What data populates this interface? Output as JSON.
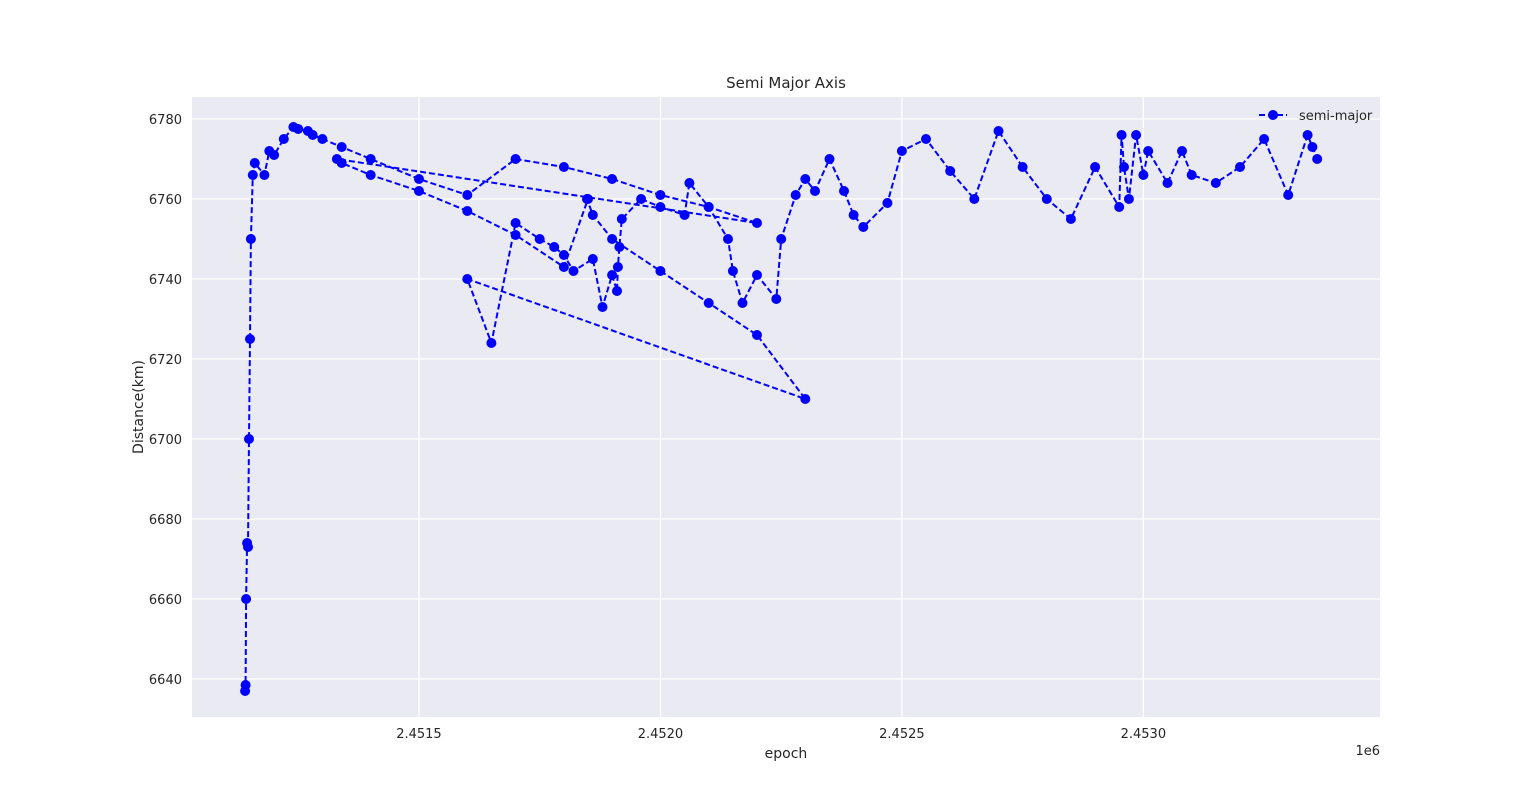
{
  "chart_data": {
    "type": "line",
    "title": "Semi Major Axis",
    "xlabel": "epoch",
    "ylabel": "Distance(km)",
    "x_offset_label": "1e6",
    "xlim": [
      2.45103,
      2.45349
    ],
    "ylim": [
      6630.5,
      6785.5
    ],
    "x_ticks": [
      2.4515,
      2.452,
      2.4525,
      2.453
    ],
    "x_tick_labels": [
      "2.4515",
      "2.4520",
      "2.4525",
      "2.4530"
    ],
    "y_ticks": [
      6640,
      6660,
      6680,
      6700,
      6720,
      6740,
      6760,
      6780
    ],
    "y_tick_labels": [
      "6640",
      "6660",
      "6680",
      "6700",
      "6720",
      "6740",
      "6760",
      "6780"
    ],
    "grid": true,
    "legend_position": "upper-right",
    "series": [
      {
        "name": "semi-major",
        "color": "#0000ff",
        "linestyle": "dashed",
        "marker": "circle",
        "x": [
          2.45114,
          2.451141,
          2.451142,
          2.451144,
          2.451146,
          2.451148,
          2.45115,
          2.451152,
          2.451156,
          2.45116,
          2.45118,
          2.45119,
          2.4512,
          2.45122,
          2.45124,
          2.45125,
          2.45127,
          2.45128,
          2.4513,
          2.45134,
          2.4514,
          2.4515,
          2.4516,
          2.4517,
          2.4518,
          2.4519,
          2.452,
          2.4521,
          2.4522,
          2.45133,
          2.45134,
          2.4514,
          2.4515,
          2.4516,
          2.4517,
          2.4518,
          2.45185,
          2.451848,
          2.45186,
          2.4519,
          2.452,
          2.4521,
          2.4522,
          2.4523,
          2.4516,
          2.45165,
          2.4517,
          2.45175,
          2.45178,
          2.4518,
          2.45182,
          2.45186,
          2.45188,
          2.4519,
          2.45191,
          2.451912,
          2.451915,
          2.45192,
          2.45196,
          2.452,
          2.45205,
          2.45206,
          2.4521,
          2.45214,
          2.45215,
          2.45217,
          2.4522,
          2.45224,
          2.45225,
          2.45228,
          2.4523,
          2.45232,
          2.45235,
          2.45238,
          2.4524,
          2.45242,
          2.45247,
          2.4525,
          2.45255,
          2.4526,
          2.45265,
          2.4527,
          2.45275,
          2.4528,
          2.45285,
          2.4529,
          2.45295,
          2.452955,
          2.45296,
          2.45297,
          2.452985,
          2.453,
          2.45301,
          2.45305,
          2.45308,
          2.4531,
          2.45315,
          2.4532,
          2.45325,
          2.4533,
          2.45334,
          2.45335,
          2.45336
        ],
        "y": [
          6637,
          6638.5,
          6660,
          6674,
          6673,
          6700,
          6725,
          6750,
          6766,
          6769,
          6766,
          6772,
          6771,
          6775,
          6778,
          6777.5,
          6777,
          6776,
          6775,
          6773,
          6770,
          6765,
          6761,
          6770,
          6768,
          6765,
          6761,
          6758,
          6754,
          6770,
          6769,
          6766,
          6762,
          6757,
          6751,
          6743,
          6760,
          6760,
          6756,
          6750,
          6742,
          6734,
          6726,
          6710,
          6740,
          6724,
          6754,
          6750,
          6748,
          6746,
          6742,
          6745,
          6733,
          6741,
          6737,
          6743,
          6748,
          6755,
          6760,
          6758,
          6756,
          6764,
          6758,
          6750,
          6742,
          6734,
          6741,
          6735,
          6750,
          6761,
          6765,
          6762,
          6770,
          6762,
          6756,
          6753,
          6759,
          6772,
          6775,
          6767,
          6760,
          6777,
          6768,
          6760,
          6755,
          6768,
          6758,
          6776,
          6768,
          6760,
          6776,
          6766,
          6772,
          6764,
          6772,
          6766,
          6764,
          6768,
          6775,
          6761,
          6776,
          6773,
          6770
        ]
      }
    ]
  }
}
